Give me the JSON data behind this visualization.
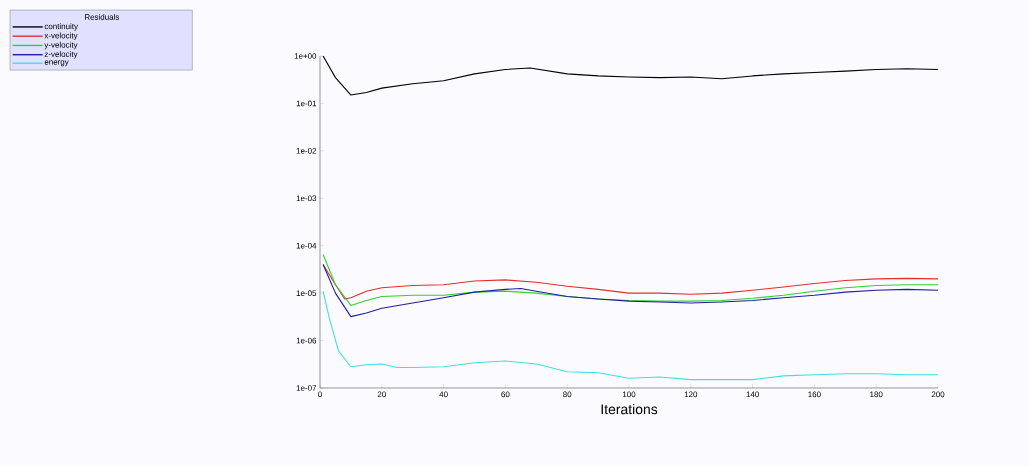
{
  "chart_data": {
    "type": "line",
    "xlabel": "Iterations",
    "legend_title": "Residuals",
    "legend": "top left",
    "log": "y",
    "grid": false,
    "marker": "none",
    "line_style": "solid",
    "xlim": [
      0,
      200
    ],
    "xticks": [
      0,
      20,
      40,
      60,
      80,
      100,
      120,
      140,
      160,
      180,
      200
    ],
    "ylim": [
      1e-07,
      1
    ],
    "yticks": [
      {
        "value": 1e-07,
        "label": "1e-07"
      },
      {
        "value": 1e-06,
        "label": "1e-06"
      },
      {
        "value": 1e-05,
        "label": "1e-05"
      },
      {
        "value": 0.0001,
        "label": "1e-04"
      },
      {
        "value": 0.001,
        "label": "1e-03"
      },
      {
        "value": 0.01,
        "label": "1e-02"
      },
      {
        "value": 0.1,
        "label": "1e-01"
      },
      {
        "value": 1,
        "label": "1e+00"
      }
    ],
    "series": [
      {
        "name": "continuity",
        "color": "#000000",
        "x": [
          1,
          5,
          10,
          15,
          20,
          30,
          40,
          50,
          60,
          68,
          80,
          90,
          100,
          110,
          120,
          130,
          140,
          150,
          160,
          170,
          180,
          190,
          200
        ],
        "values": [
          1.0,
          0.35,
          0.15,
          0.17,
          0.21,
          0.26,
          0.3,
          0.42,
          0.52,
          0.56,
          0.42,
          0.38,
          0.36,
          0.35,
          0.36,
          0.33,
          0.38,
          0.42,
          0.45,
          0.48,
          0.52,
          0.54,
          0.52
        ]
      },
      {
        "name": "x-velocity",
        "color": "#e03030",
        "x": [
          1,
          5,
          8,
          10,
          15,
          20,
          30,
          40,
          50,
          60,
          70,
          80,
          90,
          100,
          110,
          120,
          130,
          140,
          150,
          160,
          170,
          180,
          190,
          200
        ],
        "values": [
          4e-05,
          1.5e-05,
          7.5e-06,
          8e-06,
          1.1e-05,
          1.3e-05,
          1.45e-05,
          1.5e-05,
          1.8e-05,
          1.9e-05,
          1.7e-05,
          1.4e-05,
          1.2e-05,
          1e-05,
          1e-05,
          9.5e-06,
          1e-05,
          1.15e-05,
          1.35e-05,
          1.6e-05,
          1.85e-05,
          2e-05,
          2.05e-05,
          2e-05
        ]
      },
      {
        "name": "y-velocity",
        "color": "#30d030",
        "x": [
          1,
          5,
          10,
          15,
          20,
          30,
          40,
          50,
          60,
          70,
          80,
          90,
          100,
          110,
          120,
          130,
          140,
          150,
          160,
          170,
          180,
          190,
          200
        ],
        "values": [
          6.5e-05,
          1.5e-05,
          5.5e-06,
          7e-06,
          8.5e-06,
          9e-06,
          9e-06,
          1.05e-05,
          1.1e-05,
          1e-05,
          8.5e-06,
          7.5e-06,
          7e-06,
          6.8e-06,
          6.8e-06,
          7e-06,
          7.8e-06,
          9e-06,
          1.1e-05,
          1.3e-05,
          1.45e-05,
          1.5e-05,
          1.5e-05
        ]
      },
      {
        "name": "z-velocity",
        "color": "#2020a0",
        "x": [
          1,
          5,
          10,
          15,
          20,
          30,
          40,
          50,
          60,
          65,
          70,
          80,
          90,
          100,
          110,
          120,
          130,
          140,
          150,
          160,
          170,
          180,
          190,
          200
        ],
        "values": [
          4e-05,
          1e-05,
          3.2e-06,
          3.8e-06,
          4.8e-06,
          6.2e-06,
          8e-06,
          1.05e-05,
          1.2e-05,
          1.25e-05,
          1.1e-05,
          8.5e-06,
          7.5e-06,
          6.8e-06,
          6.5e-06,
          6.2e-06,
          6.5e-06,
          7e-06,
          8e-06,
          9e-06,
          1.05e-05,
          1.15e-05,
          1.2e-05,
          1.15e-05
        ]
      },
      {
        "name": "energy",
        "color": "#40e0e0",
        "x": [
          1,
          3,
          6,
          10,
          15,
          20,
          25,
          30,
          40,
          50,
          60,
          70,
          80,
          90,
          100,
          110,
          120,
          130,
          140,
          150,
          160,
          170,
          180,
          190,
          200
        ],
        "values": [
          1.1e-05,
          3e-06,
          6e-07,
          2.8e-07,
          3.1e-07,
          3.2e-07,
          2.7e-07,
          2.7e-07,
          2.8e-07,
          3.4e-07,
          3.7e-07,
          3.2e-07,
          2.2e-07,
          2.1e-07,
          1.6e-07,
          1.7e-07,
          1.5e-07,
          1.5e-07,
          1.5e-07,
          1.8e-07,
          1.9e-07,
          2e-07,
          2e-07,
          1.9e-07,
          1.9e-07
        ]
      }
    ]
  }
}
